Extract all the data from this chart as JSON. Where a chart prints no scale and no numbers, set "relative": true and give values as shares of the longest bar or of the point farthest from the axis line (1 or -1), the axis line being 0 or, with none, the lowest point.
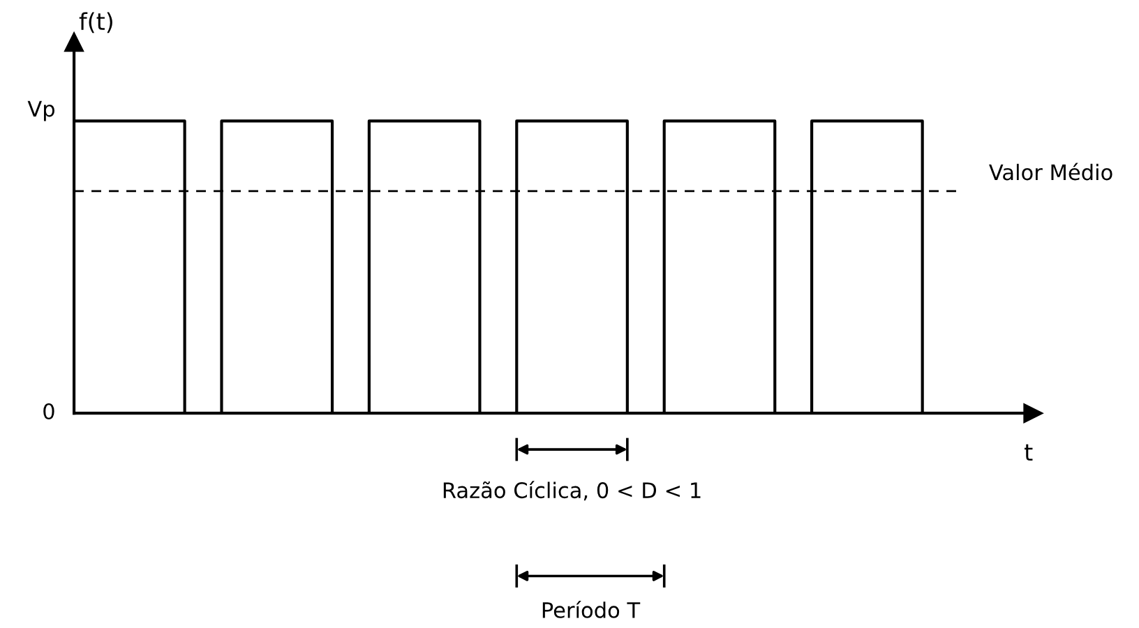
{
  "chart_data": {
    "type": "step",
    "relative": true,
    "xlabel": "t",
    "ylabel": "f(t)",
    "categories": [
      null,
      null,
      null,
      null,
      null,
      null,
      null,
      null,
      null,
      null,
      null,
      null,
      null,
      null,
      null,
      null,
      null,
      null,
      null,
      null,
      null,
      null,
      null,
      null,
      null
    ],
    "series": [
      {
        "color": "#000000",
        "values": [
          1,
          1,
          1,
          0,
          1,
          1,
          1,
          0,
          1,
          1,
          1,
          0,
          1,
          1,
          1,
          0,
          1,
          1,
          1,
          0,
          1,
          1,
          1,
          0,
          0
        ]
      }
    ],
    "ref_lines": [
      {
        "axis": "y",
        "value": 0.76,
        "label": "Valor Médio",
        "line_style": "dashed",
        "color": "#000000"
      }
    ],
    "annotations": [
      "Vp",
      "0",
      "Razão Cíclica, 0 < D < 1",
      "Período T"
    ]
  }
}
